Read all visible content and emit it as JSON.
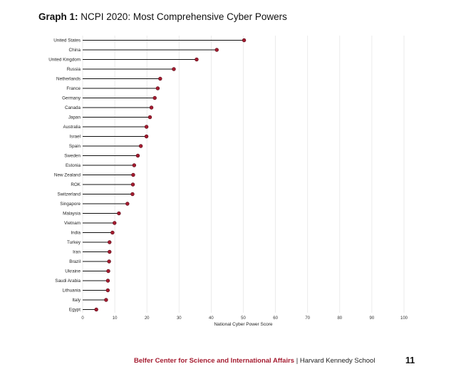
{
  "title": {
    "prefix": "Graph 1:",
    "text": "NCPI 2020: Most Comprehensive Cyber Powers"
  },
  "footer": {
    "organization": "Belfer Center for Science and International Affairs",
    "separator": " | ",
    "school": "Harvard Kennedy School",
    "page_number": "11"
  },
  "colors": {
    "point": "#a51c30",
    "point_stroke": "#5a0c18",
    "stem": "#111111",
    "grid": "#e6e6e6",
    "accent": "#a51c30"
  },
  "chart_data": {
    "type": "lollipop",
    "orientation": "horizontal",
    "title": "NCPI 2020: Most Comprehensive Cyber Powers",
    "xlabel": "National Cyber Power Score",
    "ylabel": "",
    "xlim": [
      0,
      100
    ],
    "xticks": [
      0,
      10,
      20,
      30,
      40,
      50,
      60,
      70,
      80,
      90,
      100
    ],
    "grid": "vertical",
    "categories": [
      "United States",
      "China",
      "United Kingdom",
      "Russia",
      "Netherlands",
      "France",
      "Germany",
      "Canada",
      "Japan",
      "Australia",
      "Israel",
      "Spain",
      "Sweden",
      "Estonia",
      "New Zealand",
      "ROK",
      "Switzerland",
      "Singapore",
      "Malaysia",
      "Vietnam",
      "India",
      "Turkey",
      "Iran",
      "Brazil",
      "Ukraine",
      "Saudi Arabia",
      "Lithuania",
      "Italy",
      "Egypt"
    ],
    "values": [
      50.24,
      41.74,
      35.47,
      28.38,
      24.13,
      23.37,
      22.44,
      21.41,
      20.95,
      19.87,
      19.86,
      18.1,
      17.17,
      16.04,
      15.73,
      15.63,
      15.51,
      13.93,
      11.28,
      9.92,
      9.28,
      8.37,
      8.37,
      8.23,
      7.98,
      7.86,
      7.83,
      7.29,
      4.25
    ]
  }
}
